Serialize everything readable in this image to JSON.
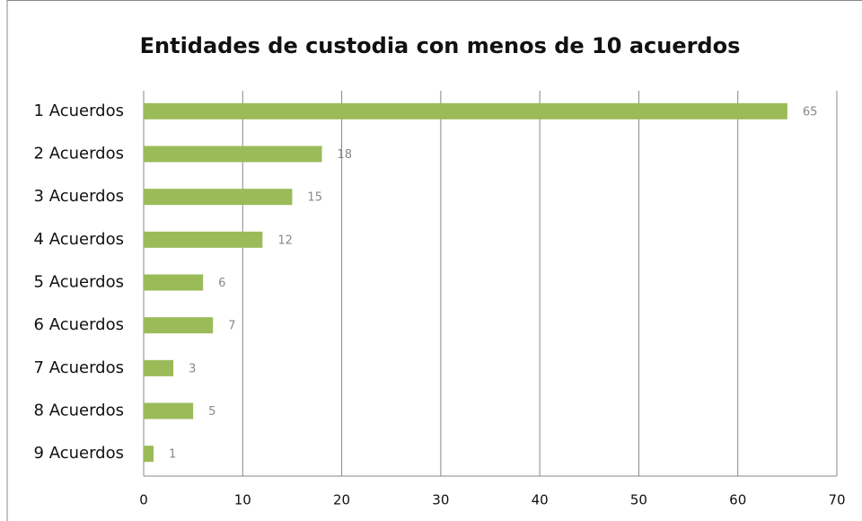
{
  "chart_data": {
    "type": "bar",
    "orientation": "horizontal",
    "title": "Entidades de custodia con menos de 10 acuerdos",
    "categories": [
      "1 Acuerdos",
      "2 Acuerdos",
      "3 Acuerdos",
      "4 Acuerdos",
      "5 Acuerdos",
      "6 Acuerdos",
      "7 Acuerdos",
      "8 Acuerdos",
      "9 Acuerdos"
    ],
    "values": [
      65,
      18,
      15,
      12,
      6,
      7,
      3,
      5,
      1
    ],
    "color": "#9bbb59",
    "xlim": [
      0,
      70
    ],
    "xticks": [
      0,
      10,
      20,
      30,
      40,
      50,
      60,
      70
    ],
    "grid": true,
    "data_labels": true
  }
}
